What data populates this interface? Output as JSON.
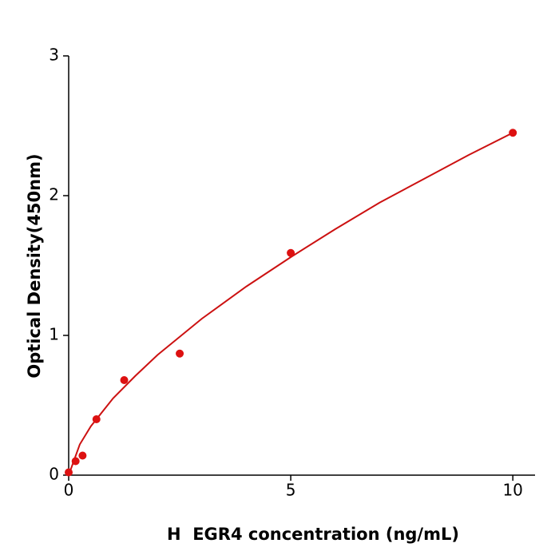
{
  "chart_data": {
    "type": "scatter",
    "x_label": "H  EGR4 concentration (ng/mL)",
    "y_label": "Optical Density(450nm)",
    "xlim": [
      0,
      10.5
    ],
    "xticks": [
      0,
      5,
      10
    ],
    "ylim": [
      0,
      3
    ],
    "yticks": [
      0,
      1,
      2,
      3
    ],
    "grid": false,
    "series": [
      {
        "type": "scatter",
        "color": "#dd1111",
        "x": [
          0,
          0.156,
          0.3125,
          0.625,
          1.25,
          2.5,
          5,
          10
        ],
        "values": [
          0.02,
          0.1,
          0.14,
          0.4,
          0.68,
          0.87,
          1.59,
          2.45
        ]
      },
      {
        "type": "line",
        "color": "#cc1111",
        "x": [
          0,
          0.25,
          0.5,
          1,
          1.5,
          2,
          3,
          4,
          5,
          6,
          7,
          8,
          9,
          10
        ],
        "values": [
          0,
          0.22,
          0.35,
          0.55,
          0.71,
          0.86,
          1.12,
          1.35,
          1.56,
          1.76,
          1.95,
          2.12,
          2.29,
          2.45
        ]
      }
    ]
  }
}
